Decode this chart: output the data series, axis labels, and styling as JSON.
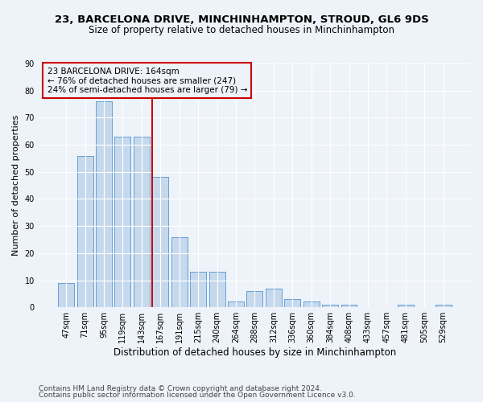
{
  "title1": "23, BARCELONA DRIVE, MINCHINHAMPTON, STROUD, GL6 9DS",
  "title2": "Size of property relative to detached houses in Minchinhampton",
  "xlabel": "Distribution of detached houses by size in Minchinhampton",
  "ylabel": "Number of detached properties",
  "categories": [
    "47sqm",
    "71sqm",
    "95sqm",
    "119sqm",
    "143sqm",
    "167sqm",
    "191sqm",
    "215sqm",
    "240sqm",
    "264sqm",
    "288sqm",
    "312sqm",
    "336sqm",
    "360sqm",
    "384sqm",
    "408sqm",
    "433sqm",
    "457sqm",
    "481sqm",
    "505sqm",
    "529sqm"
  ],
  "values": [
    9,
    56,
    76,
    63,
    63,
    48,
    26,
    13,
    13,
    2,
    6,
    7,
    3,
    2,
    1,
    1,
    0,
    0,
    1,
    0,
    1
  ],
  "bar_color": "#c6d9ec",
  "bar_edge_color": "#5b9bd5",
  "reference_line_color": "#cc0000",
  "ylim": [
    0,
    90
  ],
  "yticks": [
    0,
    10,
    20,
    30,
    40,
    50,
    60,
    70,
    80,
    90
  ],
  "annotation_text": "23 BARCELONA DRIVE: 164sqm\n← 76% of detached houses are smaller (247)\n24% of semi-detached houses are larger (79) →",
  "annotation_box_color": "#cc0000",
  "footer1": "Contains HM Land Registry data © Crown copyright and database right 2024.",
  "footer2": "Contains public sector information licensed under the Open Government Licence v3.0.",
  "bg_color": "#eef2f9",
  "grid_color": "#ffffff",
  "title1_fontsize": 9.5,
  "title2_fontsize": 8.5,
  "xlabel_fontsize": 8.5,
  "ylabel_fontsize": 8,
  "tick_fontsize": 7,
  "annotation_fontsize": 7.5,
  "footer_fontsize": 6.5
}
